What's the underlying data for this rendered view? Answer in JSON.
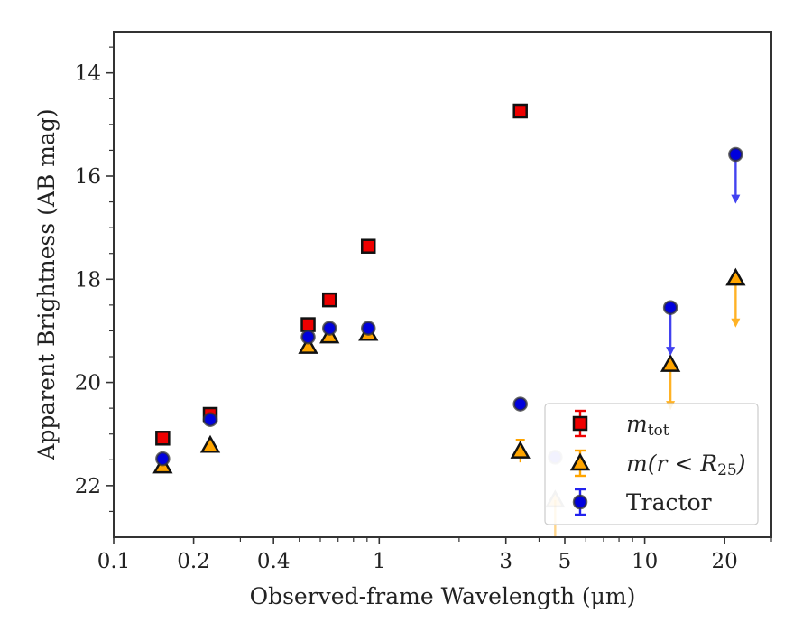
{
  "chart_data": {
    "type": "scatter",
    "xlabel": "Observed-frame Wavelength (μm)",
    "ylabel": "Apparent Brightness (AB mag)",
    "xscale": "log",
    "xlim": [
      0.1,
      30
    ],
    "ylim": [
      23,
      13.2
    ],
    "y_inverted": true,
    "x_ticks": [
      {
        "value": 0.1,
        "label": "0.1"
      },
      {
        "value": 0.2,
        "label": "0.2"
      },
      {
        "value": 0.4,
        "label": "0.4"
      },
      {
        "value": 1,
        "label": "1"
      },
      {
        "value": 3,
        "label": "3"
      },
      {
        "value": 5,
        "label": "5"
      },
      {
        "value": 10,
        "label": "10"
      },
      {
        "value": 20,
        "label": "20"
      }
    ],
    "x_minor_ticks": [
      0.3,
      0.5,
      0.6,
      0.7,
      0.8,
      0.9,
      2,
      4,
      6,
      7,
      8,
      9,
      30
    ],
    "y_ticks": [
      14,
      16,
      18,
      20,
      22
    ],
    "y_minor_ticks": [
      13.5,
      14.5,
      15,
      15.5,
      16.5,
      17,
      17.5,
      18.5,
      19,
      19.5,
      20.5,
      21,
      21.5,
      22.5
    ],
    "grid": false,
    "legend_position": "lower-right",
    "series": [
      {
        "key": "mtot",
        "legend_main": "m",
        "legend_sub": "tot",
        "marker": "square",
        "color": "#ee0000",
        "edge": "#111111",
        "errcolor": "#ee0000",
        "points": [
          {
            "x": 0.153,
            "y": 21.08
          },
          {
            "x": 0.231,
            "y": 20.62
          },
          {
            "x": 0.54,
            "y": 18.88
          },
          {
            "x": 0.65,
            "y": 18.4
          },
          {
            "x": 0.91,
            "y": 17.36
          },
          {
            "x": 3.4,
            "y": 14.74
          }
        ]
      },
      {
        "key": "mr25",
        "legend_main": "m(r < R",
        "legend_sub": "25",
        "legend_tail": ")",
        "marker": "triangle",
        "color": "#ffa500",
        "edge": "#111111",
        "errcolor": "#ffa500",
        "points": [
          {
            "x": 0.153,
            "y": 21.62
          },
          {
            "x": 0.231,
            "y": 21.22
          },
          {
            "x": 0.54,
            "y": 19.3
          },
          {
            "x": 0.65,
            "y": 19.1
          },
          {
            "x": 0.91,
            "y": 19.05
          },
          {
            "x": 3.4,
            "y": 21.33,
            "err": 0.22
          },
          {
            "x": 4.6,
            "y": 22.28,
            "faint": true,
            "upper_limit": true,
            "arrow_to": 23.2
          },
          {
            "x": 12.5,
            "y": 19.65,
            "upper_limit": true,
            "arrow_to": 20.5
          },
          {
            "x": 22.0,
            "y": 17.98,
            "upper_limit": true,
            "arrow_to": 18.9
          }
        ]
      },
      {
        "key": "tractor",
        "legend_main": "Tractor",
        "marker": "circle",
        "color": "#0000dd",
        "edge": "#333333",
        "errcolor": "#2222ee",
        "points": [
          {
            "x": 0.153,
            "y": 21.48
          },
          {
            "x": 0.231,
            "y": 20.72
          },
          {
            "x": 0.54,
            "y": 19.12
          },
          {
            "x": 0.65,
            "y": 18.95
          },
          {
            "x": 0.91,
            "y": 18.95
          },
          {
            "x": 3.4,
            "y": 20.42
          },
          {
            "x": 4.6,
            "y": 21.45,
            "faint": true
          },
          {
            "x": 12.5,
            "y": 18.55,
            "upper_limit": true,
            "arrow_to": 19.45
          },
          {
            "x": 22.0,
            "y": 15.58,
            "upper_limit": true,
            "arrow_to": 16.5
          }
        ]
      }
    ]
  }
}
